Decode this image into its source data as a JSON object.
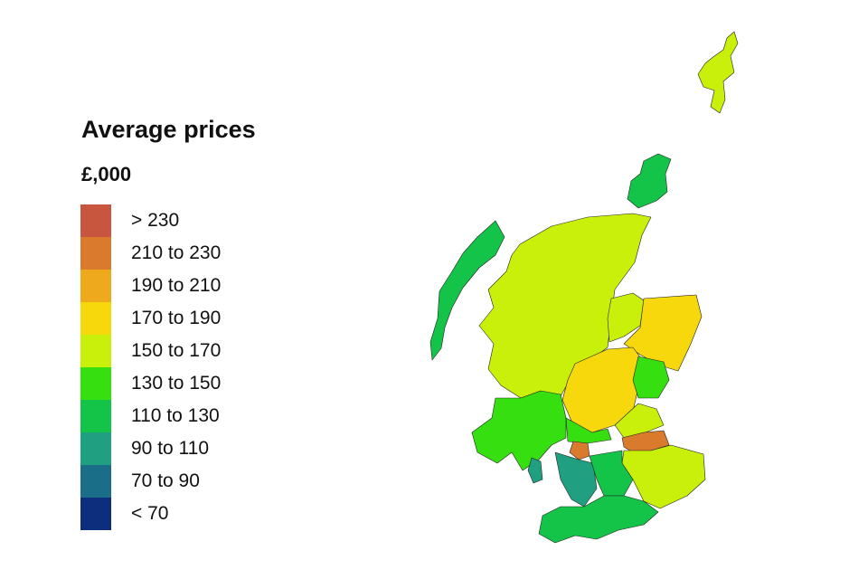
{
  "legend": {
    "title": "Average prices",
    "unit": "£,000",
    "bins": [
      {
        "label": "> 230",
        "color": "#c8553d"
      },
      {
        "label": "210 to 230",
        "color": "#da7a2c"
      },
      {
        "label": "190 to 210",
        "color": "#eeaa1c"
      },
      {
        "label": "170 to 190",
        "color": "#f6d80c"
      },
      {
        "label": "150 to 170",
        "color": "#c8f00a"
      },
      {
        "label": "130 to 150",
        "color": "#36e010"
      },
      {
        "label": "110 to 130",
        "color": "#14c448"
      },
      {
        "label": "90 to 110",
        "color": "#20a080"
      },
      {
        "label": "70 to 90",
        "color": "#1a6e88"
      },
      {
        "label": "< 70",
        "color": "#0d2e7c"
      }
    ]
  },
  "map": {
    "regions": [
      {
        "name": "shetland",
        "bin": "150 to 170"
      },
      {
        "name": "orkney",
        "bin": "110 to 130"
      },
      {
        "name": "western-isles",
        "bin": "110 to 130"
      },
      {
        "name": "highland",
        "bin": "150 to 170"
      },
      {
        "name": "moray",
        "bin": "150 to 170"
      },
      {
        "name": "aberdeenshire",
        "bin": "170 to 190"
      },
      {
        "name": "perth-and-kinross",
        "bin": "170 to 190"
      },
      {
        "name": "angus",
        "bin": "130 to 150"
      },
      {
        "name": "argyll",
        "bin": "130 to 150"
      },
      {
        "name": "stirling",
        "bin": "130 to 150"
      },
      {
        "name": "fife",
        "bin": "150 to 170"
      },
      {
        "name": "edinburgh",
        "bin": "210 to 230"
      },
      {
        "name": "east-dunbartonshire",
        "bin": "210 to 230"
      },
      {
        "name": "borders-lothians",
        "bin": "150 to 170"
      },
      {
        "name": "ayrshire",
        "bin": "90 to 110"
      },
      {
        "name": "dumfries-and-galloway",
        "bin": "110 to 130"
      },
      {
        "name": "south-lanarkshire",
        "bin": "110 to 130"
      },
      {
        "name": "arran-bute",
        "bin": "90 to 110"
      }
    ]
  }
}
